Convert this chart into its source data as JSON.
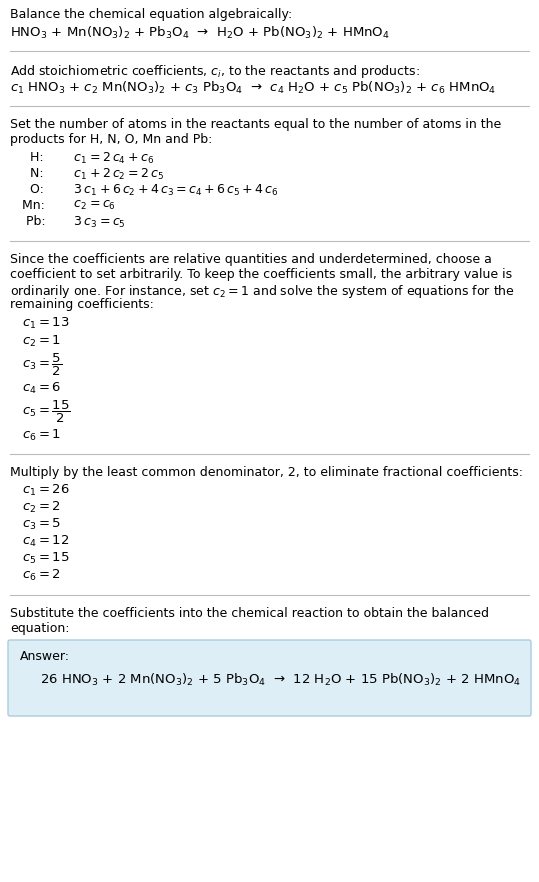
{
  "bg_color": "#ffffff",
  "text_color": "#000000",
  "answer_box_color": "#ddeef6",
  "answer_box_edge": "#aaccdd",
  "figsize": [
    5.39,
    8.82
  ],
  "dpi": 100,
  "section1_title": "Balance the chemical equation algebraically:",
  "section1_eq": "HNO$_3$ + Mn(NO$_3$)$_2$ + Pb$_3$O$_4$  →  H$_2$O + Pb(NO$_3$)$_2$ + HMnO$_4$",
  "section2_title": "Add stoichiometric coefficients, $c_i$, to the reactants and products:",
  "section2_eq": "$c_1$ HNO$_3$ + $c_2$ Mn(NO$_3$)$_2$ + $c_3$ Pb$_3$O$_4$  →  $c_4$ H$_2$O + $c_5$ Pb(NO$_3$)$_2$ + $c_6$ HMnO$_4$",
  "section3_title_line1": "Set the number of atoms in the reactants equal to the number of atoms in the",
  "section3_title_line2": "products for H, N, O, Mn and Pb:",
  "section3_equations": [
    [
      "  H: ",
      " $c_1 = 2\\,c_4 + c_6$"
    ],
    [
      "  N: ",
      " $c_1 + 2\\,c_2 = 2\\,c_5$"
    ],
    [
      "  O: ",
      " $3\\,c_1 + 6\\,c_2 + 4\\,c_3 = c_4 + 6\\,c_5 + 4\\,c_6$"
    ],
    [
      "Mn: ",
      " $c_2 = c_6$"
    ],
    [
      " Pb: ",
      " $3\\,c_3 = c_5$"
    ]
  ],
  "section4_title_lines": [
    "Since the coefficients are relative quantities and underdetermined, choose a",
    "coefficient to set arbitrarily. To keep the coefficients small, the arbitrary value is",
    "ordinarily one. For instance, set $c_2 = 1$ and solve the system of equations for the",
    "remaining coefficients:"
  ],
  "section4_coeffs": [
    "$c_1 = 13$",
    "$c_2 = 1$",
    "$c_3 = \\dfrac{5}{2}$",
    "$c_4 = 6$",
    "$c_5 = \\dfrac{15}{2}$",
    "$c_6 = 1$"
  ],
  "section4_coeff_heights": [
    1.0,
    1.0,
    1.8,
    1.0,
    1.8,
    1.0
  ],
  "section5_title": "Multiply by the least common denominator, 2, to eliminate fractional coefficients:",
  "section5_coeffs": [
    "$c_1 = 26$",
    "$c_2 = 2$",
    "$c_3 = 5$",
    "$c_4 = 12$",
    "$c_5 = 15$",
    "$c_6 = 2$"
  ],
  "section6_title_line1": "Substitute the coefficients into the chemical reaction to obtain the balanced",
  "section6_title_line2": "equation:",
  "answer_label": "Answer:",
  "answer_eq": "26 HNO$_3$ + 2 Mn(NO$_3$)$_2$ + 5 Pb$_3$O$_4$  →  12 H$_2$O + 15 Pb(NO$_3$)$_2$ + 2 HMnO$_4$"
}
